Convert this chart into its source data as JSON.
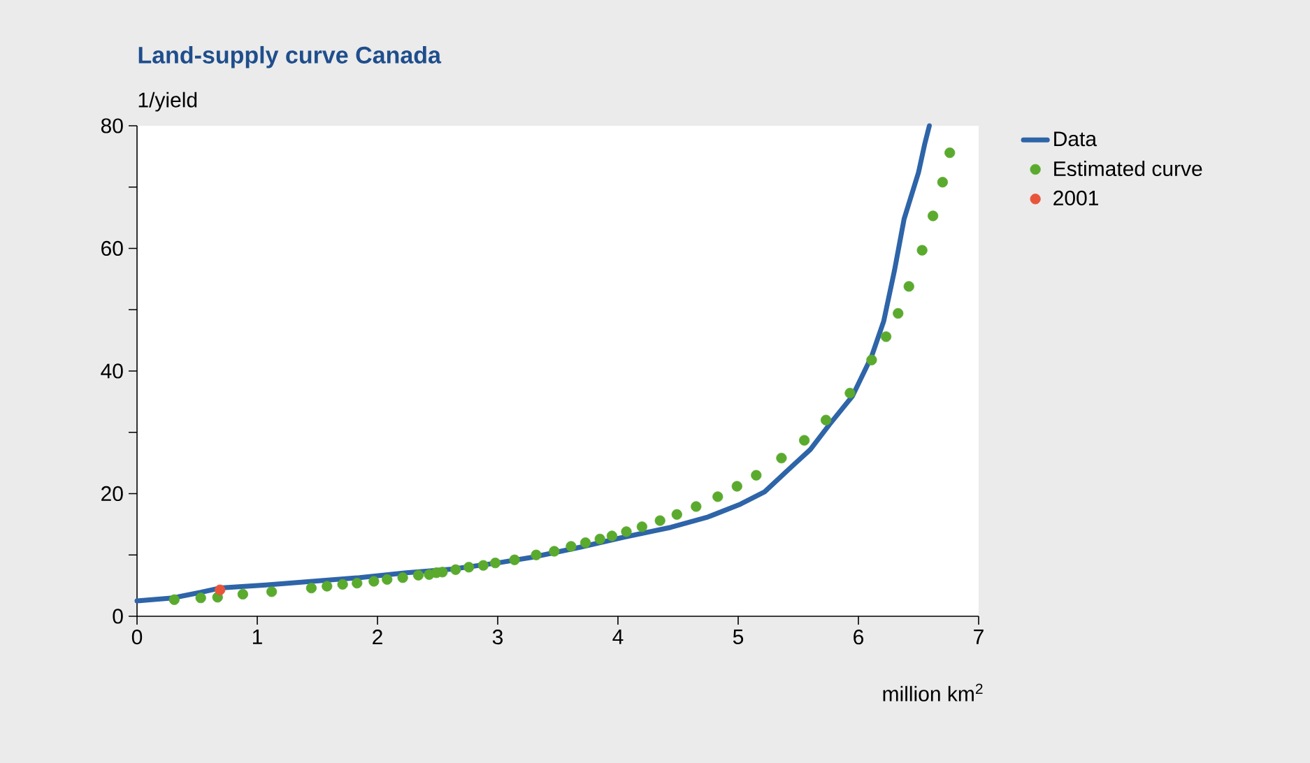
{
  "chart_data": {
    "type": "line",
    "title": "Land-supply curve Canada",
    "ylabel": "1/yield",
    "xlabel": "million km$^{2}$",
    "xlim": [
      0,
      7
    ],
    "ylim": [
      0,
      80
    ],
    "xticks": [
      0,
      1,
      2,
      3,
      4,
      5,
      6,
      7
    ],
    "yticks": [
      0,
      {
        "value": 10,
        "label": null
      },
      20,
      {
        "value": 30,
        "label": null
      },
      40,
      {
        "value": 50,
        "label": null
      },
      60,
      {
        "value": 70,
        "label": null
      },
      80
    ],
    "grid": false,
    "legend": "right",
    "series": [
      {
        "name": "Data",
        "marker": "none",
        "color": "#2e64a8",
        "line_style": "solid",
        "x": [
          0,
          0.3,
          0.53,
          0.69,
          1.07,
          1.46,
          1.85,
          2.24,
          2.62,
          3.0,
          3.28,
          3.67,
          4.05,
          4.44,
          4.75,
          5.02,
          5.22,
          5.45,
          5.6,
          5.76,
          5.95,
          6.11,
          6.21,
          6.3,
          6.38,
          6.5,
          6.55,
          6.59
        ],
        "values": [
          2.5,
          3.0,
          3.9,
          4.6,
          5.1,
          5.7,
          6.3,
          7.1,
          7.7,
          8.7,
          9.6,
          11.2,
          12.9,
          14.5,
          16.2,
          18.3,
          20.3,
          24.5,
          27.2,
          31.3,
          35.9,
          42.4,
          48.1,
          56.4,
          64.8,
          72.4,
          76.9,
          80
        ]
      },
      {
        "name": "Estimated curve",
        "type": "scatter",
        "marker": "circle",
        "color": "#5aaa2e",
        "x": [
          0.31,
          0.53,
          0.67,
          0.88,
          1.12,
          1.45,
          1.58,
          1.71,
          1.83,
          1.97,
          2.08,
          2.21,
          2.34,
          2.43,
          2.49,
          2.54,
          2.65,
          2.76,
          2.88,
          2.98,
          3.14,
          3.32,
          3.47,
          3.61,
          3.73,
          3.85,
          3.95,
          4.07,
          4.2,
          4.35,
          4.49,
          4.65,
          4.83,
          4.99,
          5.15,
          5.36,
          5.55,
          5.73,
          5.93,
          6.11,
          6.23,
          6.33,
          6.42,
          6.53,
          6.62,
          6.7,
          6.76
        ],
        "values": [
          2.7,
          3.0,
          3.1,
          3.6,
          4.0,
          4.6,
          4.9,
          5.2,
          5.4,
          5.7,
          6.0,
          6.3,
          6.7,
          6.8,
          7.1,
          7.2,
          7.6,
          8.0,
          8.3,
          8.7,
          9.2,
          10.0,
          10.6,
          11.4,
          12.0,
          12.6,
          13.1,
          13.8,
          14.6,
          15.6,
          16.6,
          17.9,
          19.5,
          21.2,
          23.0,
          25.8,
          28.7,
          32.0,
          36.4,
          41.8,
          45.6,
          49.4,
          53.8,
          59.7,
          65.3,
          70.8,
          75.6
        ]
      },
      {
        "name": "2001",
        "type": "scatter",
        "marker": "circle",
        "color": "#e8553a",
        "x": [
          0.69
        ],
        "values": [
          4.3
        ]
      }
    ]
  }
}
